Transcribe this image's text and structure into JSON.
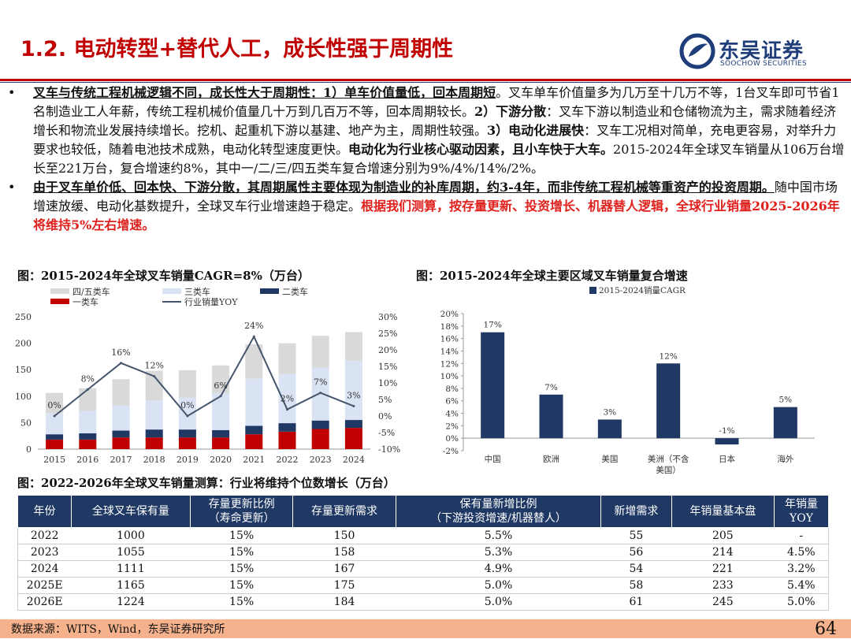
{
  "header": {
    "title": "1.2. 电动转型+替代人工，成长性强于周期性",
    "logo_cn": "东吴证券",
    "logo_en": "SOOCHOW SECURITIES"
  },
  "bullets": [
    {
      "marker": "•",
      "runs": [
        {
          "t": "叉车与传统工程机械逻辑不同，成长性大于周期性：1）单车价值量低，回本周期短",
          "s": "u"
        },
        {
          "t": "。叉车单车价值量多为几万至十几万不等，1台叉车即可节省1名制造业工人年薪，传统工程机械价值量几十万到几百万不等，回本周期较长。",
          "s": ""
        },
        {
          "t": "2）下游分散",
          "s": "b"
        },
        {
          "t": "：叉车下游以制造业和仓储物流为主，需求随着经济增长和物流业发展持续增长。挖机、起重机下游以基建、地产为主，周期性较强。",
          "s": ""
        },
        {
          "t": "3）电动化进展快",
          "s": "b"
        },
        {
          "t": "：叉车工况相对简单，充电更容易，对举升力要求也较低，随着电池技术成熟，电动化转型速度更快。",
          "s": ""
        },
        {
          "t": "电动化为行业核心驱动因素，且小车快于大车。",
          "s": "b"
        },
        {
          "t": "2015-2024年全球叉车销量从106万台增长至221万台，复合增速约8%，其中一/二/三/四五类车复合增速分别为9%/4%/14%/2%。",
          "s": ""
        }
      ]
    },
    {
      "marker": "•",
      "runs": [
        {
          "t": "由于叉车单价低、回本快、下游分散，其周期属性主要体现为制造业的补库周期，约3-4年，而非传统工程机械等重资产的投资周期。",
          "s": "u"
        },
        {
          "t": "随中国市场增速放缓、电动化基数提升，全球叉车行业增速趋于稳定。",
          "s": ""
        },
        {
          "t": "根据我们测算，按存量更新、投资增长、机器替人逻辑，全球行业销量2025-2026年将维持5%左右增速。",
          "s": "r"
        }
      ]
    }
  ],
  "figure1": {
    "caption": "图：2015-2024年全球叉车销量CAGR=8%（万台）"
  },
  "figure2": {
    "caption": "图：2015-2024年全球主要区域叉车销量复合增速"
  },
  "table": {
    "caption": "图：2022-2026年全球叉车销量测算：行业将维持个位数增长（万台）",
    "headers": [
      "年份",
      "全球叉车保有量",
      "存量更新比例\n（寿命更新）",
      "存量更新需求",
      "保有量新增比例\n（下游投资增速/机器替人）",
      "新增需求",
      "年销量基本盘",
      "年销量\nYOY"
    ],
    "rows": [
      [
        "2022",
        "1000",
        "15%",
        "150",
        "5.5%",
        "55",
        "205",
        "-"
      ],
      [
        "2023",
        "1055",
        "15%",
        "158",
        "5.3%",
        "56",
        "214",
        "4.5%"
      ],
      [
        "2024",
        "1111",
        "15%",
        "167",
        "4.9%",
        "54",
        "221",
        "3.2%"
      ],
      [
        "2025E",
        "1165",
        "15%",
        "175",
        "5.0%",
        "58",
        "233",
        "5.4%"
      ],
      [
        "2026E",
        "1224",
        "15%",
        "184",
        "5.0%",
        "61",
        "245",
        "5.0%"
      ]
    ]
  },
  "footer": {
    "source": "数据来源：WITS，Wind，东吴证券研究所",
    "page": "64"
  },
  "chart_data": [
    {
      "type": "bar",
      "stacked": true,
      "categories": [
        "2015",
        "2016",
        "2017",
        "2018",
        "2019",
        "2020",
        "2021",
        "2022",
        "2023",
        "2024"
      ],
      "series": [
        {
          "name": "一类车",
          "color": "#c00000",
          "values": [
            18,
            18,
            22,
            22,
            22,
            22,
            28,
            33,
            38,
            40
          ]
        },
        {
          "name": "二类车",
          "color": "#1f3864",
          "values": [
            10,
            12,
            13,
            15,
            15,
            14,
            16,
            16,
            16,
            15
          ]
        },
        {
          "name": "三类车",
          "color": "#dae3f3",
          "values": [
            40,
            42,
            47,
            55,
            60,
            70,
            89,
            93,
            100,
            112
          ]
        },
        {
          "name": "四/五类车",
          "color": "#d9d9d9",
          "values": [
            38,
            43,
            50,
            56,
            52,
            52,
            65,
            58,
            60,
            54
          ]
        },
        {
          "name": "行业销量YOY",
          "color": "#44546a",
          "type": "line",
          "axis": "right",
          "values": [
            0,
            8,
            16,
            12,
            0,
            6,
            24,
            2,
            7,
            3
          ],
          "labels": [
            "0%",
            "8%",
            "16%",
            "12%",
            "0%",
            "6%",
            "24%",
            "2%",
            "7%",
            "3%"
          ]
        }
      ],
      "y_left": {
        "min": 0,
        "max": 250,
        "ticks": [
          "0",
          "50",
          "100",
          "150",
          "200",
          "250"
        ]
      },
      "y_right": {
        "min": -10,
        "max": 30,
        "ticks": [
          "-10%",
          "-5%",
          "0%",
          "5%",
          "10%",
          "15%",
          "20%",
          "25%",
          "30%"
        ]
      },
      "legend_position": "top",
      "grid": false
    },
    {
      "type": "bar",
      "categories": [
        "中国",
        "欧洲",
        "美国",
        "美洲（不含美国）",
        "日本",
        "海外"
      ],
      "category_lines": [
        [
          "中国"
        ],
        [
          "欧洲"
        ],
        [
          "美国"
        ],
        [
          "美洲（不含",
          "美国）"
        ],
        [
          "日本"
        ],
        [
          "海外"
        ]
      ],
      "series": [
        {
          "name": "2015-2024销量CAGR",
          "color": "#1f3864",
          "values": [
            17,
            7,
            3,
            12,
            -1,
            5
          ],
          "labels": [
            "17%",
            "7%",
            "3%",
            "12%",
            "-1%",
            "5%"
          ]
        }
      ],
      "y": {
        "min": -2,
        "max": 20,
        "ticks": [
          "-2%",
          "0%",
          "2%",
          "4%",
          "6%",
          "8%",
          "10%",
          "12%",
          "14%",
          "16%",
          "18%",
          "20%"
        ]
      },
      "legend_position": "top-left",
      "grid": false
    }
  ]
}
